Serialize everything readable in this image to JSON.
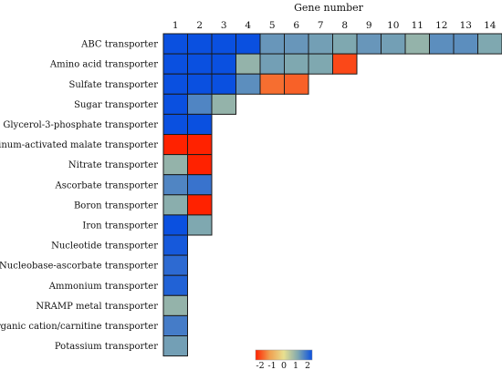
{
  "chart_data": {
    "type": "heatmap",
    "title": "Gene number",
    "columns": [
      "1",
      "2",
      "3",
      "4",
      "5",
      "6",
      "7",
      "8",
      "9",
      "10",
      "11",
      "12",
      "13",
      "14"
    ],
    "rows": [
      {
        "label": "ABC transporter",
        "values": [
          2,
          2,
          2,
          2,
          1.2,
          1.2,
          1.1,
          1.0,
          1.2,
          1.1,
          0.8,
          1.3,
          1.3,
          1.0
        ]
      },
      {
        "label": "Amino acid transporter",
        "values": [
          2,
          2,
          2,
          0.8,
          1.1,
          1.0,
          1.0,
          -1.7
        ]
      },
      {
        "label": "Sulfate transporter",
        "values": [
          2,
          2,
          2,
          1.3,
          -1.4,
          -1.5
        ]
      },
      {
        "label": "Sugar transporter",
        "values": [
          2,
          1.4,
          0.8
        ]
      },
      {
        "label": "Glycerol-3-phosphate transporter",
        "values": [
          2,
          2
        ]
      },
      {
        "label": "Aluminum-activated malate transporter",
        "values": [
          -2,
          -2
        ]
      },
      {
        "label": "Nitrate transporter",
        "values": [
          0.8,
          -2
        ]
      },
      {
        "label": "Ascorbate transporter",
        "values": [
          1.4,
          1.6
        ]
      },
      {
        "label": "Boron transporter",
        "values": [
          0.9,
          -2
        ]
      },
      {
        "label": "Iron transporter",
        "values": [
          2,
          1.0
        ]
      },
      {
        "label": "Nucleotide transporter",
        "values": [
          1.9
        ]
      },
      {
        "label": "Nucleobase-ascorbate transporter",
        "values": [
          1.7
        ]
      },
      {
        "label": "Ammonium transporter",
        "values": [
          1.8
        ]
      },
      {
        "label": "NRAMP metal transporter",
        "values": [
          0.8
        ]
      },
      {
        "label": "Organic cation/carnitine transporter",
        "values": [
          1.5
        ]
      },
      {
        "label": "Potassium transporter",
        "values": [
          1.1
        ]
      }
    ],
    "legend": {
      "ticks": [
        "-2",
        "-1",
        "0",
        "1",
        "2"
      ],
      "min": -2,
      "max": 2
    },
    "colors": {
      "low": "#ff2200",
      "midlow": "#f0a050",
      "mid": "#e8e090",
      "midhigh": "#7fa8b0",
      "high": "#0a50e0"
    }
  }
}
